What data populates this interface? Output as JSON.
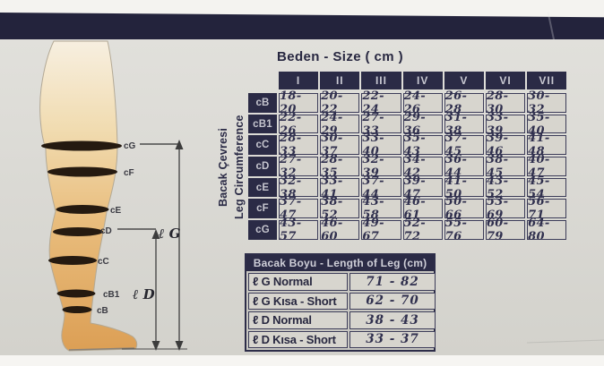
{
  "main_table": {
    "title": "Beden - Size ( cm )",
    "side_label_tr": "Bacak Çevresi",
    "side_label_en": "Leg Circumference",
    "columns": [
      "I",
      "II",
      "III",
      "IV",
      "V",
      "VI",
      "VII"
    ],
    "rows": [
      {
        "label": "cB",
        "values": [
          "18-20",
          "20-22",
          "22-24",
          "24-26",
          "26-28",
          "28-30",
          "30-32"
        ]
      },
      {
        "label": "cB1",
        "values": [
          "22-26",
          "24-29",
          "27-33",
          "29-36",
          "31-38",
          "33-39",
          "35-40"
        ]
      },
      {
        "label": "cC",
        "values": [
          "28-33",
          "30-37",
          "33-40",
          "35-43",
          "37-45",
          "39-46",
          "41-48"
        ]
      },
      {
        "label": "cD",
        "values": [
          "27-32",
          "28-35",
          "32-39",
          "34-42",
          "36-44",
          "38-45",
          "40-47"
        ]
      },
      {
        "label": "cE",
        "values": [
          "32-38",
          "33-41",
          "37-44",
          "39-47",
          "41-50",
          "43-52",
          "45-54"
        ]
      },
      {
        "label": "cF",
        "values": [
          "37-47",
          "38-52",
          "43-58",
          "46-61",
          "50-66",
          "53-69",
          "56-71"
        ]
      },
      {
        "label": "cG",
        "values": [
          "43-57",
          "46-60",
          "49-67",
          "52-72",
          "55-76",
          "60-79",
          "64-80"
        ]
      }
    ]
  },
  "length_table": {
    "title": "Bacak Boyu - Length of Leg (cm)",
    "rows": [
      {
        "label": "ℓ G Normal",
        "value": "71 - 82"
      },
      {
        "label": "ℓ G Kısa - Short",
        "value": "62 - 70"
      },
      {
        "label": "ℓ D Normal",
        "value": "38 - 43"
      },
      {
        "label": "ℓ D Kısa - Short",
        "value": "33 - 37"
      }
    ]
  },
  "leg_diagram": {
    "labels": {
      "cG": "cG",
      "cF": "cF",
      "cE": "cE",
      "cD": "cD",
      "cC": "cC",
      "cB1": "cB1",
      "cB": "cB",
      "lG": "ℓ G",
      "lD": "ℓ D"
    }
  },
  "colors": {
    "navy": "#2b2b46",
    "cell_bg": "#d7d5ce",
    "cell_text": "#30304e",
    "package_bg": "#dbdad5",
    "skin_top": "#f7efe0",
    "skin_bottom": "#dc9f55",
    "band": "#251a10"
  }
}
